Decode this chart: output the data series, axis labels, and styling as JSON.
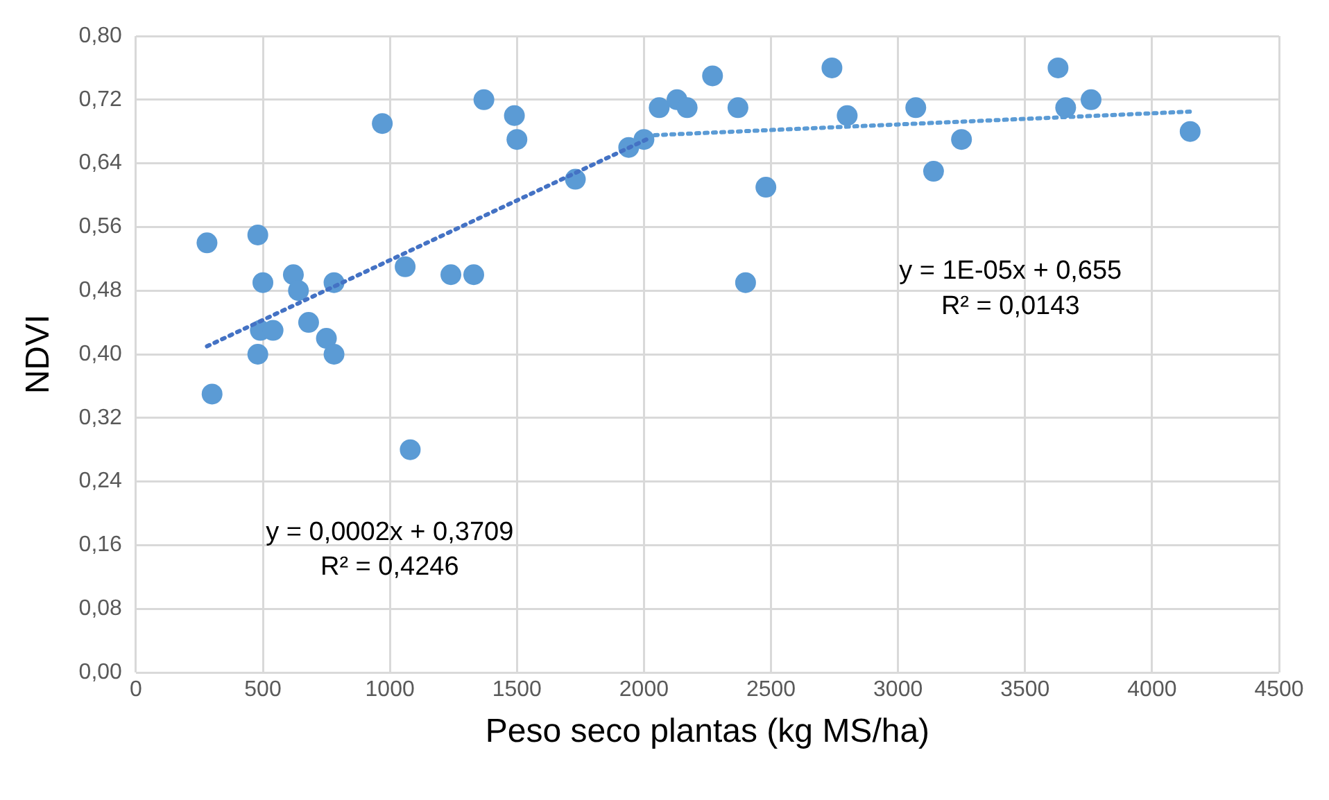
{
  "chart_data": {
    "type": "scatter",
    "xlabel": "Peso seco plantas (kg MS/ha)",
    "ylabel": "NDVI",
    "xlim": [
      0,
      4500
    ],
    "xticks": [
      0,
      500,
      1000,
      1500,
      2000,
      2500,
      3000,
      3500,
      4000,
      4500
    ],
    "ylim": [
      0,
      0.8
    ],
    "yticks": [
      {
        "value": 0,
        "label": "0,00"
      },
      {
        "value": 0.08,
        "label": "0,08"
      },
      {
        "value": 0.16,
        "label": "0,16"
      },
      {
        "value": 0.24,
        "label": "0,24"
      },
      {
        "value": 0.32,
        "label": "0,32"
      },
      {
        "value": 0.4,
        "label": "0,40"
      },
      {
        "value": 0.48,
        "label": "0,48"
      },
      {
        "value": 0.56,
        "label": "0,56"
      },
      {
        "value": 0.64,
        "label": "0,64"
      },
      {
        "value": 0.72,
        "label": "0,72"
      },
      {
        "value": 0.8,
        "label": "0,80"
      }
    ],
    "grid": true,
    "legend": false,
    "marker": "circle",
    "series": [
      {
        "color": "#5b9bd5",
        "x": [
          280,
          300,
          480,
          480,
          490,
          500,
          540,
          620,
          640,
          680,
          750,
          780,
          780,
          970,
          1060,
          1080,
          1240,
          1330,
          1370,
          1490,
          1500,
          1730,
          1940,
          2000,
          2060,
          2130,
          2170,
          2270,
          2370,
          2400,
          2480,
          2740,
          2800,
          3070,
          3140,
          3250,
          3630,
          3660,
          3760,
          4150
        ],
        "values": [
          0.54,
          0.35,
          0.55,
          0.4,
          0.43,
          0.49,
          0.43,
          0.5,
          0.48,
          0.44,
          0.42,
          0.4,
          0.49,
          0.69,
          0.51,
          0.28,
          0.5,
          0.5,
          0.72,
          0.7,
          0.67,
          0.62,
          0.66,
          0.67,
          0.71,
          0.72,
          0.71,
          0.75,
          0.71,
          0.49,
          0.61,
          0.76,
          0.7,
          0.71,
          0.63,
          0.67,
          0.76,
          0.71,
          0.72,
          0.68
        ]
      },
      {
        "type": "line",
        "color": "#4472c4",
        "line_style": "dotted",
        "marker": "none",
        "x": [
          280,
          2010
        ],
        "values": [
          0.41,
          0.67
        ]
      },
      {
        "type": "line",
        "color": "#5b9bd5",
        "line_style": "dotted",
        "marker": "none",
        "x": [
          2010,
          4150
        ],
        "values": [
          0.675,
          0.705
        ]
      }
    ],
    "annotations": [
      "y = 0,0002x + 0,3709",
      "R² = 0,4246",
      "y = 1E-05x + 0,655",
      "R² = 0,0143"
    ]
  }
}
